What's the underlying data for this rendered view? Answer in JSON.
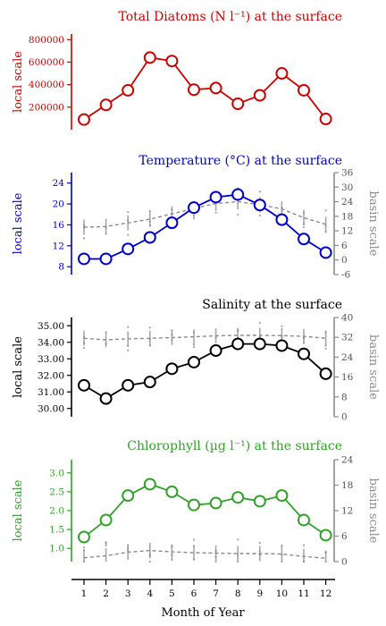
{
  "xaxis": {
    "label": "Month of Year",
    "ticks": [
      1,
      2,
      3,
      4,
      5,
      6,
      7,
      8,
      9,
      10,
      11,
      12
    ]
  },
  "chart_data": [
    {
      "type": "line",
      "title": "Total Diatoms (N l⁻¹) at the surface",
      "color": "#cc0000",
      "ylabel_left": "local scale",
      "ylim_left": [
        0,
        850000
      ],
      "yticks_left": [
        200000,
        400000,
        600000,
        800000
      ],
      "series": [
        {
          "values": [
            90000,
            220000,
            350000,
            640000,
            610000,
            355000,
            370000,
            230000,
            305000,
            500000,
            350000,
            95000
          ]
        }
      ]
    },
    {
      "type": "line",
      "title": "Temperature (°C) at the surface",
      "color": "#0000cc",
      "ylabel_left": "local scale",
      "ylabel_right": "basin scale",
      "ylim_left": [
        6.5,
        26
      ],
      "yticks_left": [
        8,
        12,
        16,
        20,
        24
      ],
      "ylim_right": [
        -6,
        36
      ],
      "yticks_right": [
        -6,
        0,
        6,
        12,
        18,
        24,
        30,
        36
      ],
      "series": [
        {
          "values": [
            9.5,
            9.5,
            11.4,
            13.6,
            16.4,
            19.3,
            21.3,
            21.8,
            19.8,
            17.0,
            13.3,
            10.7
          ]
        }
      ],
      "basin_series": [
        {
          "values": [
            13.5,
            13.8,
            15.3,
            16.8,
            19.0,
            21.2,
            23.3,
            24.0,
            22.8,
            21.0,
            17.4,
            14.7
          ]
        }
      ]
    },
    {
      "type": "line",
      "title": "Salinity at the surface",
      "color": "#000000",
      "ylabel_left": "local scale",
      "ylabel_right": "basin scale",
      "ylim_left": [
        29.5,
        35.5
      ],
      "yticks_left": [
        "30.00",
        "31.00",
        "32.00",
        "33.00",
        "34.00",
        "35.00"
      ],
      "ylim_right": [
        0,
        40
      ],
      "yticks_right": [
        0,
        8,
        16,
        24,
        32,
        40
      ],
      "series": [
        {
          "values": [
            31.4,
            30.6,
            31.4,
            31.6,
            32.4,
            32.8,
            33.5,
            33.9,
            33.9,
            33.8,
            33.3,
            32.1
          ]
        }
      ],
      "basin_series": [
        {
          "values": [
            31.6,
            31.0,
            31.4,
            31.6,
            31.9,
            32.2,
            32.6,
            32.8,
            32.8,
            32.7,
            32.4,
            31.6
          ]
        }
      ]
    },
    {
      "type": "line",
      "title": "Chlorophyll (µg l⁻¹) at the surface",
      "color": "#33a02c",
      "ylabel_left": "local scale",
      "ylabel_right": "basin scale",
      "ylim_left": [
        0.65,
        3.35
      ],
      "yticks_left": [
        "1.0",
        "1.5",
        "2.0",
        "2.5",
        "3.0"
      ],
      "ylim_right": [
        0,
        24
      ],
      "yticks_right": [
        0,
        6,
        12,
        18,
        24
      ],
      "series": [
        {
          "values": [
            1.3,
            1.75,
            2.4,
            2.7,
            2.5,
            2.15,
            2.2,
            2.35,
            2.25,
            2.4,
            1.75,
            1.35
          ]
        }
      ],
      "basin_series": [
        {
          "values": [
            0.9,
            1.4,
            2.2,
            2.6,
            2.3,
            2.1,
            2.0,
            1.9,
            1.9,
            1.8,
            1.2,
            0.8
          ]
        }
      ]
    }
  ]
}
